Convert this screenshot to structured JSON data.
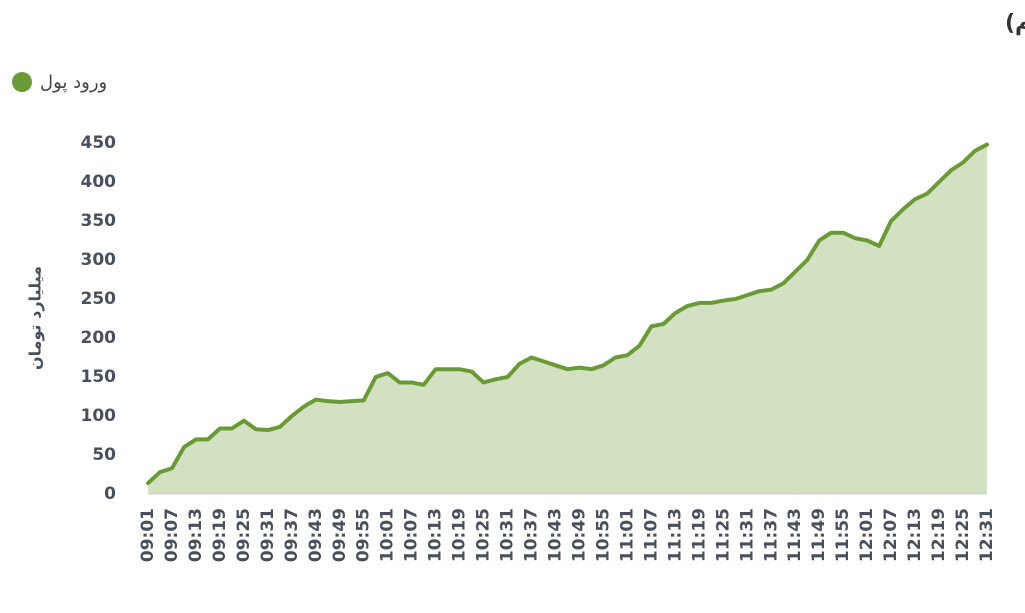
{
  "chart_data": {
    "type": "area",
    "title": "روند تغییر مالکیت حقیقی (سهام و حق تقدم)",
    "y_label": "میلیارد تومان",
    "categories": [
      "09:01",
      null,
      "09:07",
      null,
      "09:13",
      null,
      "09:19",
      null,
      "09:25",
      null,
      "09:31",
      null,
      "09:37",
      null,
      "09:43",
      null,
      "09:49",
      null,
      "09:55",
      null,
      "10:01",
      null,
      "10:07",
      null,
      "10:13",
      null,
      "10:19",
      null,
      "10:25",
      null,
      "10:31",
      null,
      "10:37",
      null,
      "10:43",
      null,
      "10:49",
      null,
      "10:55",
      null,
      "11:01",
      null,
      "11:07",
      null,
      "11:13",
      null,
      "11:19",
      null,
      "11:25",
      null,
      "11:31",
      null,
      "11:37",
      null,
      "11:43",
      null,
      "11:49",
      null,
      "11:55",
      null,
      "12:01",
      null,
      "12:07",
      null,
      "12:13",
      null,
      "12:19",
      null,
      "12:25",
      null,
      "12:31"
    ],
    "series": [
      {
        "name": "ورود پول",
        "color": "#6a9a35",
        "values": [
          14,
          28,
          33,
          60,
          70,
          70,
          84,
          84,
          94,
          83,
          82,
          86,
          100,
          112,
          121,
          119,
          118,
          119,
          120,
          150,
          155,
          143,
          143,
          140,
          160,
          160,
          160,
          157,
          143,
          147,
          150,
          167,
          175,
          170,
          165,
          160,
          162,
          160,
          165,
          175,
          178,
          190,
          215,
          218,
          232,
          241,
          245,
          245,
          248,
          250,
          255,
          260,
          262,
          270,
          285,
          300,
          325,
          335,
          335,
          328,
          325,
          318,
          350,
          365,
          378,
          385,
          400,
          415,
          425,
          440,
          448
        ]
      }
    ],
    "ylim": [
      0,
      450
    ],
    "yticks": [
      0,
      50,
      100,
      150,
      200,
      250,
      300,
      350,
      400,
      450
    ],
    "legend": "top-left",
    "grid": false
  }
}
